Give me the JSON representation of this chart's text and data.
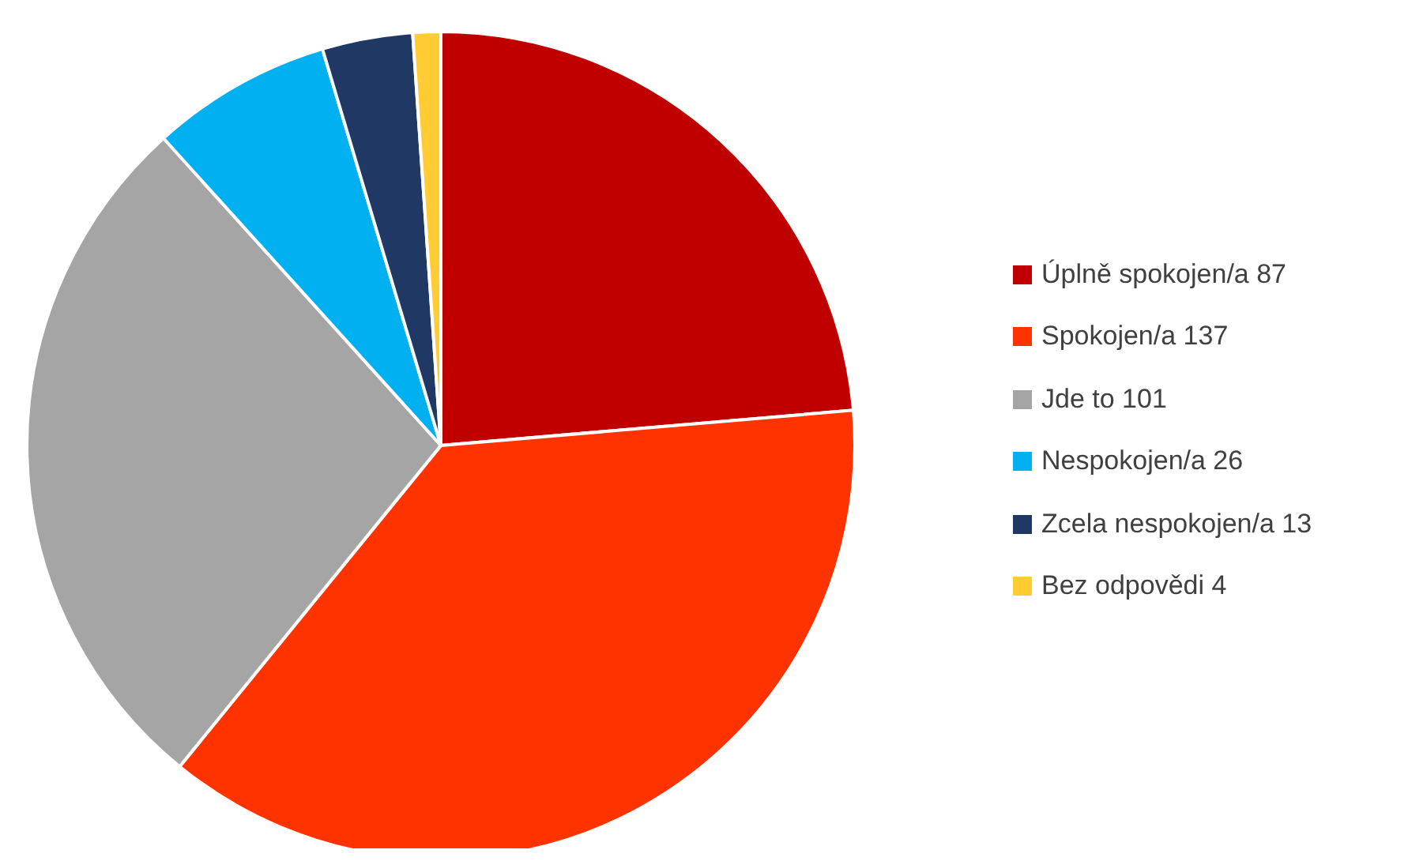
{
  "chart_data": {
    "type": "pie",
    "categories": [
      "Úplně spokojen/a 87",
      "Spokojen/a 137",
      "Jde to 101",
      "Nespokojen/a 26",
      "Zcela nespokojen/a 13",
      "Bez odpovědi 4"
    ],
    "values": [
      87,
      137,
      101,
      26,
      13,
      4
    ],
    "colors": [
      "#c00000",
      "#ff3300",
      "#a5a5a5",
      "#00b0f0",
      "#1f3864",
      "#ffcc33"
    ],
    "legend": "right"
  }
}
